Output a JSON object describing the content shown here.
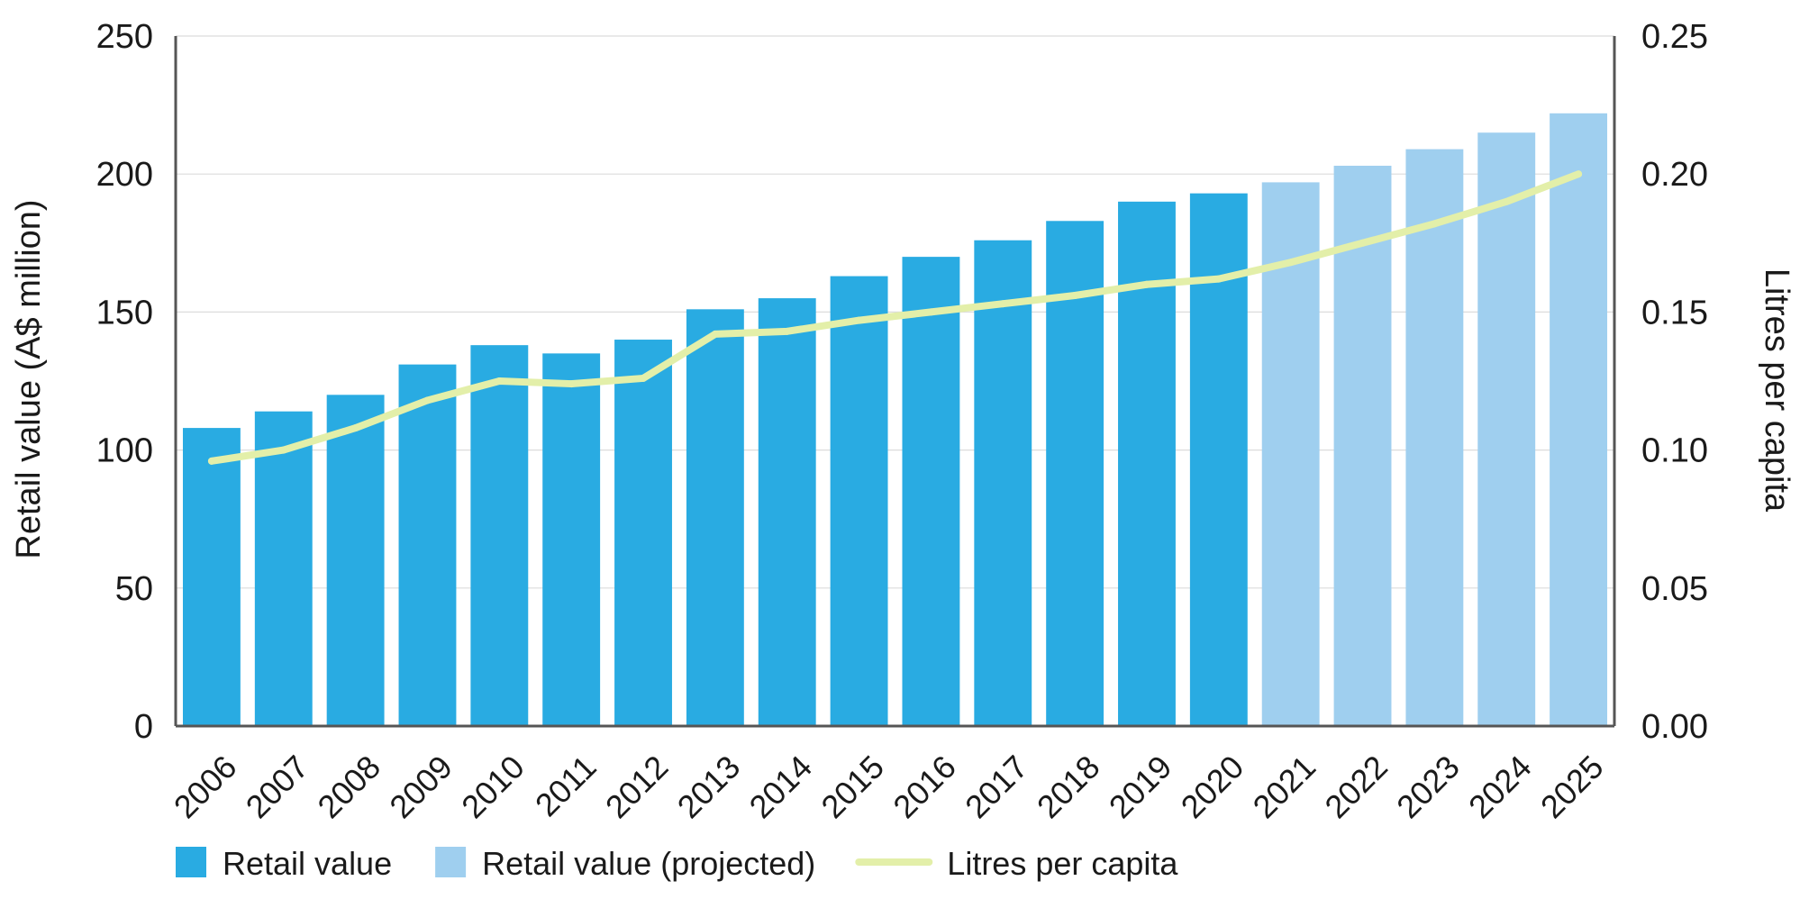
{
  "chart_data": {
    "type": "bar",
    "categories": [
      "2006",
      "2007",
      "2008",
      "2009",
      "2010",
      "2011",
      "2012",
      "2013",
      "2014",
      "2015",
      "2016",
      "2017",
      "2018",
      "2019",
      "2020",
      "2021",
      "2022",
      "2023",
      "2024",
      "2025"
    ],
    "series": [
      {
        "name": "Retail value",
        "kind": "bar",
        "axis": "left",
        "color": "#29abe2",
        "values": [
          108,
          114,
          120,
          131,
          138,
          135,
          140,
          151,
          155,
          163,
          170,
          176,
          183,
          190,
          193,
          null,
          null,
          null,
          null,
          null
        ]
      },
      {
        "name": "Retail value (projected)",
        "kind": "bar",
        "axis": "left",
        "color": "#9fcfef",
        "values": [
          null,
          null,
          null,
          null,
          null,
          null,
          null,
          null,
          null,
          null,
          null,
          null,
          null,
          null,
          null,
          197,
          203,
          209,
          215,
          222
        ]
      },
      {
        "name": "Litres per capita",
        "kind": "line",
        "axis": "right",
        "color": "#e3efa9",
        "values": [
          0.096,
          0.1,
          0.108,
          0.118,
          0.125,
          0.124,
          0.126,
          0.142,
          0.143,
          0.147,
          0.15,
          0.153,
          0.156,
          0.16,
          0.162,
          0.168,
          0.175,
          0.182,
          0.19,
          0.2
        ]
      }
    ],
    "ylabel": "Retail value (A$ million)",
    "y2label": "Litres per capita",
    "ylim": [
      0,
      250
    ],
    "yticks": [
      "0",
      "50",
      "100",
      "150",
      "200",
      "250"
    ],
    "y2lim": [
      0,
      0.25
    ],
    "y2ticks": [
      "0.00",
      "0.05",
      "0.10",
      "0.15",
      "0.20",
      "0.25"
    ],
    "grid": true,
    "legend_position": "bottom-left"
  }
}
